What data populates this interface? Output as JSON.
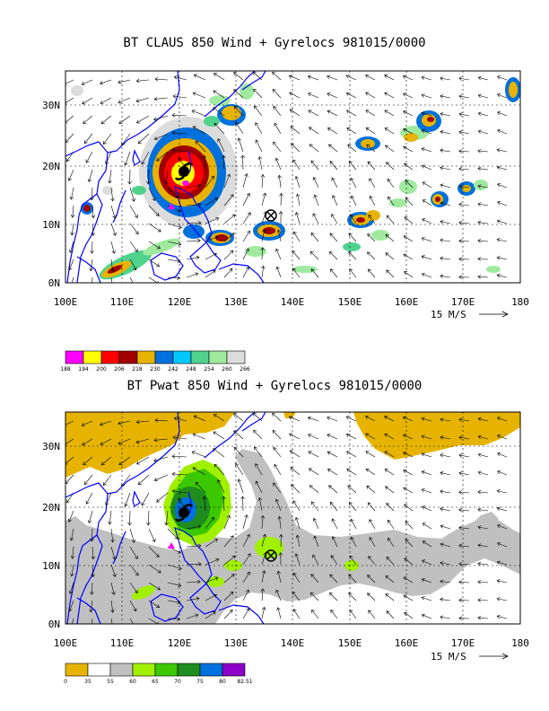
{
  "panels": [
    {
      "title": "BT CLAUS 850 Wind + Gyrelocs 981015/0000",
      "lat_labels": [
        "30N",
        "20N",
        "10N",
        "0N"
      ],
      "lon_labels": [
        "100E",
        "110E",
        "120E",
        "130E",
        "140E",
        "150E",
        "160E",
        "170E",
        "180"
      ],
      "ref_vector": "15 M/S",
      "colorbar_labels": [
        "188",
        "194",
        "200",
        "206",
        "218",
        "230",
        "242",
        "248",
        "254",
        "260",
        "266"
      ],
      "colorbar_colors": [
        "#ff00ff",
        "#ffff00",
        "#ff0000",
        "#a00000",
        "#e6b400",
        "#0070dc",
        "#00c8ff",
        "#50d28c",
        "#a0eaa0",
        "#dcdcdc"
      ]
    },
    {
      "title": "BT Pwat 850 Wind + Gyrelocs 981015/0000",
      "lat_labels": [
        "30N",
        "20N",
        "10N",
        "0N"
      ],
      "lon_labels": [
        "100E",
        "110E",
        "120E",
        "130E",
        "140E",
        "150E",
        "160E",
        "170E",
        "180"
      ],
      "ref_vector": "15 M/S",
      "colorbar_labels": [
        "0",
        "35",
        "55",
        "60",
        "65",
        "70",
        "75",
        "80",
        "82.51"
      ],
      "colorbar_colors": [
        "#e6b400",
        "#ffffff",
        "#c0c0c0",
        "#a0f000",
        "#3cc800",
        "#1e8c1e",
        "#0070dc",
        "#8c00c8"
      ]
    }
  ],
  "colors": {
    "coast": "#0000ff",
    "storm": "#000000",
    "gyre_marker": "#000000",
    "origin_marker": "#ff00ff"
  }
}
